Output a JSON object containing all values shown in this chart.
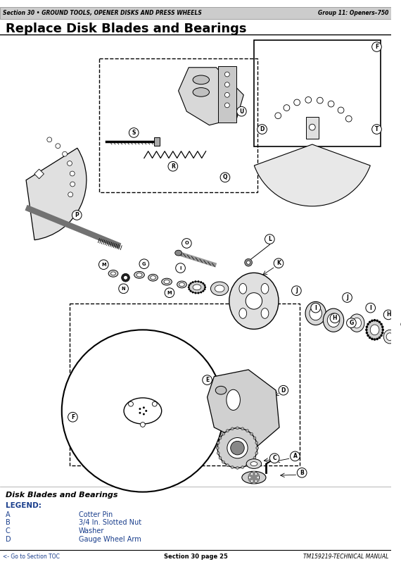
{
  "title": "Replace Disk Blades and Bearings",
  "header_left": "Section 30 • GROUND TOOLS, OPENER DISKS AND PRESS WHEELS",
  "header_right": "Group 11: Openers–750",
  "footer_left": "<- Go to Section TOC",
  "footer_center": "Section 30 page 25",
  "footer_right": "TM159219-TECHNICAL MANUAL",
  "legend_title": "Disk Blades and Bearings",
  "legend_header": "LEGEND:",
  "legend_items": [
    [
      "A",
      "Cotter Pin"
    ],
    [
      "B",
      "3/4 In. Slotted Nut"
    ],
    [
      "C",
      "Washer"
    ],
    [
      "D",
      "Gauge Wheel Arm"
    ]
  ],
  "bg_color": "#ffffff",
  "text_color": "#000000",
  "blue_color": "#1a3e8c",
  "header_bg": "#cccccc",
  "diagram_bg": "#f5f5f5",
  "border_color": "#333333"
}
